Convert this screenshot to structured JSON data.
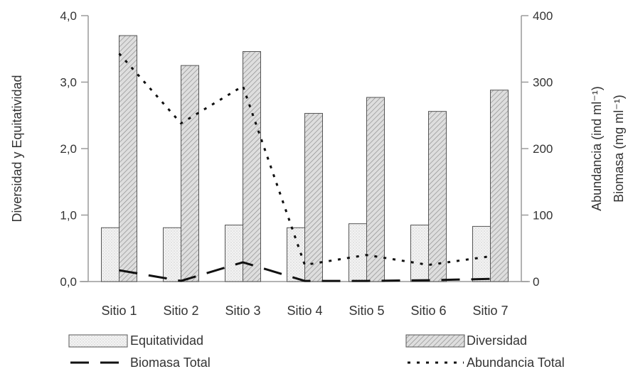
{
  "chart_data": {
    "type": "bar",
    "categories": [
      "Sitio 1",
      "Sitio 2",
      "Sitio 3",
      "Sitio 4",
      "Sitio 5",
      "Sitio 6",
      "Sitio 7"
    ],
    "left_axis": {
      "title": "Diversidad y Equitatividad",
      "ylim": [
        0,
        4
      ],
      "ticks": [
        "0,0",
        "1,0",
        "2,0",
        "3,0",
        "4,0"
      ],
      "tick_values": [
        0,
        1,
        2,
        3,
        4
      ]
    },
    "right_axis": {
      "title_1": "Abundancia (ind ml⁻¹)",
      "title_2": "Biomasa (mg ml⁻¹)",
      "ylim": [
        0,
        400
      ],
      "ticks": [
        "0",
        "100",
        "200",
        "300",
        "400"
      ],
      "tick_values": [
        0,
        100,
        200,
        300,
        400
      ]
    },
    "bar_series": [
      {
        "name": "Equitatividad",
        "axis": "left",
        "pattern": "dots",
        "values": [
          0.81,
          0.81,
          0.85,
          0.81,
          0.87,
          0.85,
          0.83
        ]
      },
      {
        "name": "Diversidad",
        "axis": "left",
        "pattern": "hatch",
        "values": [
          3.7,
          3.25,
          3.46,
          2.53,
          2.77,
          2.56,
          2.88
        ]
      }
    ],
    "line_series": [
      {
        "name": "Biomasa Total",
        "axis": "right",
        "style": "dashed",
        "values": [
          17,
          1,
          29,
          1,
          1,
          2,
          4
        ]
      },
      {
        "name": "Abundancia Total",
        "axis": "right",
        "style": "dotted",
        "values": [
          343,
          238,
          294,
          25,
          40,
          25,
          38
        ]
      }
    ],
    "legend": {
      "placement": "bottom",
      "items": [
        "Equitatividad",
        "Diversidad",
        "Biomasa Total",
        "Abundancia Total"
      ]
    },
    "grid": false,
    "colors": {
      "ink": "#333333",
      "bar_light_fill": "#f1f1f1",
      "bar_hatch_fill": "#dcdcdc",
      "axis": "#9a9a9a"
    }
  }
}
